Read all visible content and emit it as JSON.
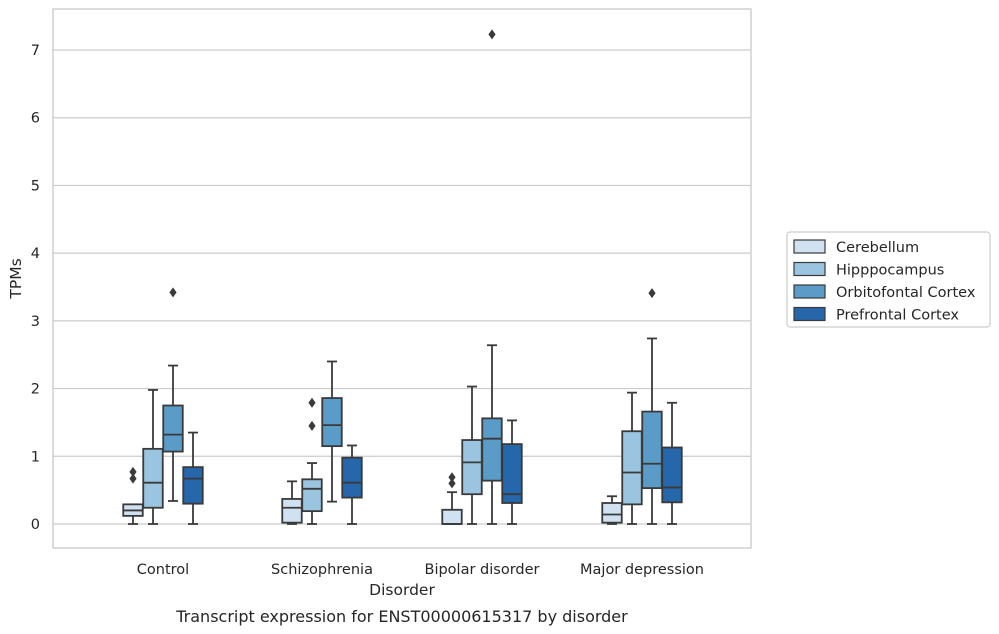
{
  "caption": "Transcript expression for ENST00000615317 by disorder",
  "chart_data": {
    "type": "box",
    "xlabel": "Disorder",
    "ylabel": "TPMs",
    "ylim": [
      -0.35,
      7.6
    ],
    "yticks": [
      0,
      1,
      2,
      3,
      4,
      5,
      6,
      7
    ],
    "grid": "horizontal",
    "legend_position": "right",
    "categories": [
      "Control",
      "Schizophrenia",
      "Bipolar disorder",
      "Major depression"
    ],
    "series": [
      {
        "name": "Cerebellum",
        "color": "#d0e2f2",
        "boxes": [
          {
            "whisker_low": 0.0,
            "q1": 0.12,
            "median": 0.2,
            "q3": 0.29,
            "whisker_high": 0.29,
            "outliers": [
              0.67,
              0.77
            ]
          },
          {
            "whisker_low": 0.0,
            "q1": 0.02,
            "median": 0.24,
            "q3": 0.37,
            "whisker_high": 0.63,
            "outliers": []
          },
          {
            "whisker_low": 0.0,
            "q1": 0.0,
            "median": 0.0,
            "q3": 0.21,
            "whisker_high": 0.47,
            "outliers": [
              0.6,
              0.69
            ]
          },
          {
            "whisker_low": 0.0,
            "q1": 0.02,
            "median": 0.14,
            "q3": 0.31,
            "whisker_high": 0.41,
            "outliers": []
          }
        ]
      },
      {
        "name": "Hipppocampus",
        "color": "#9ac4df",
        "boxes": [
          {
            "whisker_low": 0.0,
            "q1": 0.24,
            "median": 0.61,
            "q3": 1.11,
            "whisker_high": 1.98,
            "outliers": []
          },
          {
            "whisker_low": 0.0,
            "q1": 0.19,
            "median": 0.52,
            "q3": 0.66,
            "whisker_high": 0.9,
            "outliers": [
              1.45,
              1.79
            ]
          },
          {
            "whisker_low": 0.0,
            "q1": 0.44,
            "median": 0.91,
            "q3": 1.24,
            "whisker_high": 2.03,
            "outliers": []
          },
          {
            "whisker_low": 0.0,
            "q1": 0.29,
            "median": 0.76,
            "q3": 1.37,
            "whisker_high": 1.94,
            "outliers": []
          }
        ]
      },
      {
        "name": "Orbitofontal Cortex",
        "color": "#5a9bc8",
        "boxes": [
          {
            "whisker_low": 0.34,
            "q1": 1.07,
            "median": 1.32,
            "q3": 1.75,
            "whisker_high": 2.34,
            "outliers": [
              3.42
            ]
          },
          {
            "whisker_low": 0.33,
            "q1": 1.15,
            "median": 1.46,
            "q3": 1.86,
            "whisker_high": 2.4,
            "outliers": []
          },
          {
            "whisker_low": 0.0,
            "q1": 0.64,
            "median": 1.26,
            "q3": 1.56,
            "whisker_high": 2.64,
            "outliers": [
              7.23
            ]
          },
          {
            "whisker_low": 0.0,
            "q1": 0.53,
            "median": 0.89,
            "q3": 1.66,
            "whisker_high": 2.74,
            "outliers": [
              3.41
            ]
          }
        ]
      },
      {
        "name": "Prefrontal Cortex",
        "color": "#2666aa",
        "boxes": [
          {
            "whisker_low": 0.0,
            "q1": 0.3,
            "median": 0.67,
            "q3": 0.84,
            "whisker_high": 1.35,
            "outliers": []
          },
          {
            "whisker_low": 0.0,
            "q1": 0.39,
            "median": 0.61,
            "q3": 0.98,
            "whisker_high": 1.16,
            "outliers": []
          },
          {
            "whisker_low": 0.0,
            "q1": 0.31,
            "median": 0.44,
            "q3": 1.18,
            "whisker_high": 1.53,
            "outliers": []
          },
          {
            "whisker_low": 0.0,
            "q1": 0.32,
            "median": 0.54,
            "q3": 1.13,
            "whisker_high": 1.79,
            "outliers": []
          }
        ]
      }
    ]
  }
}
